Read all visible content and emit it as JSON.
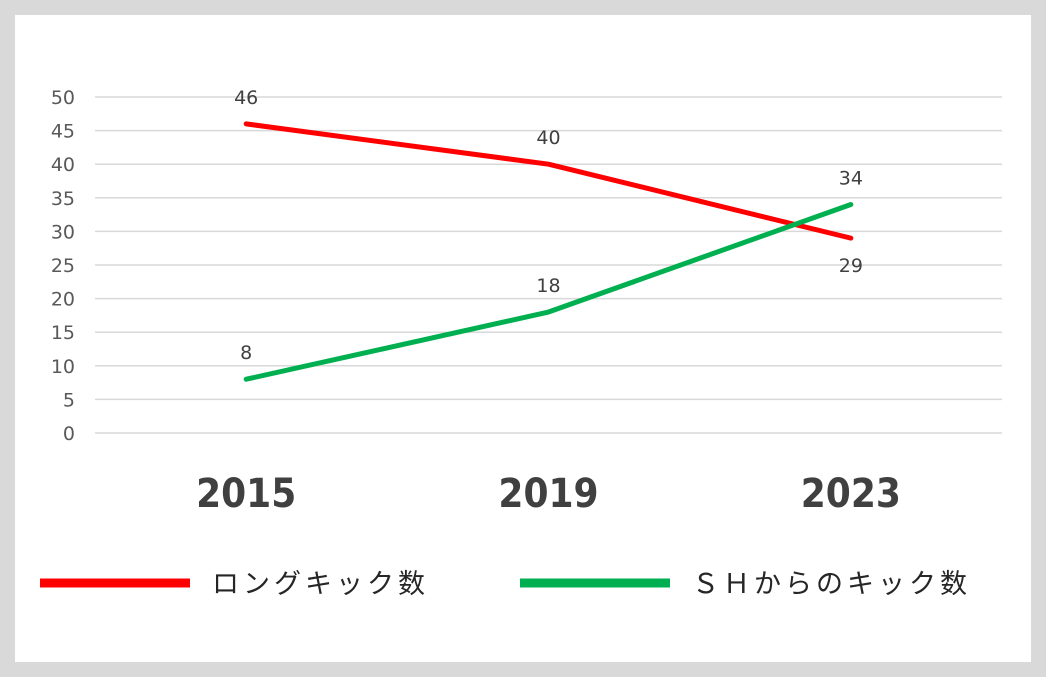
{
  "chart_data": {
    "type": "line",
    "categories": [
      "2015",
      "2019",
      "2023"
    ],
    "series": [
      {
        "name": "ロングキック数",
        "values": [
          46,
          40,
          29
        ],
        "color": "#ff0000"
      },
      {
        "name": "ＳＨからのキック数",
        "values": [
          8,
          18,
          34
        ],
        "color": "#00b050"
      }
    ],
    "ylim": [
      0,
      50
    ],
    "yticks": [
      0,
      5,
      10,
      15,
      20,
      25,
      30,
      35,
      40,
      45,
      50
    ],
    "grid": true,
    "legend_position": "bottom",
    "label_positions": {
      "ロングキック数": [
        "above",
        "above",
        "below"
      ],
      "ＳＨからのキック数": [
        "above",
        "above",
        "above"
      ]
    }
  }
}
